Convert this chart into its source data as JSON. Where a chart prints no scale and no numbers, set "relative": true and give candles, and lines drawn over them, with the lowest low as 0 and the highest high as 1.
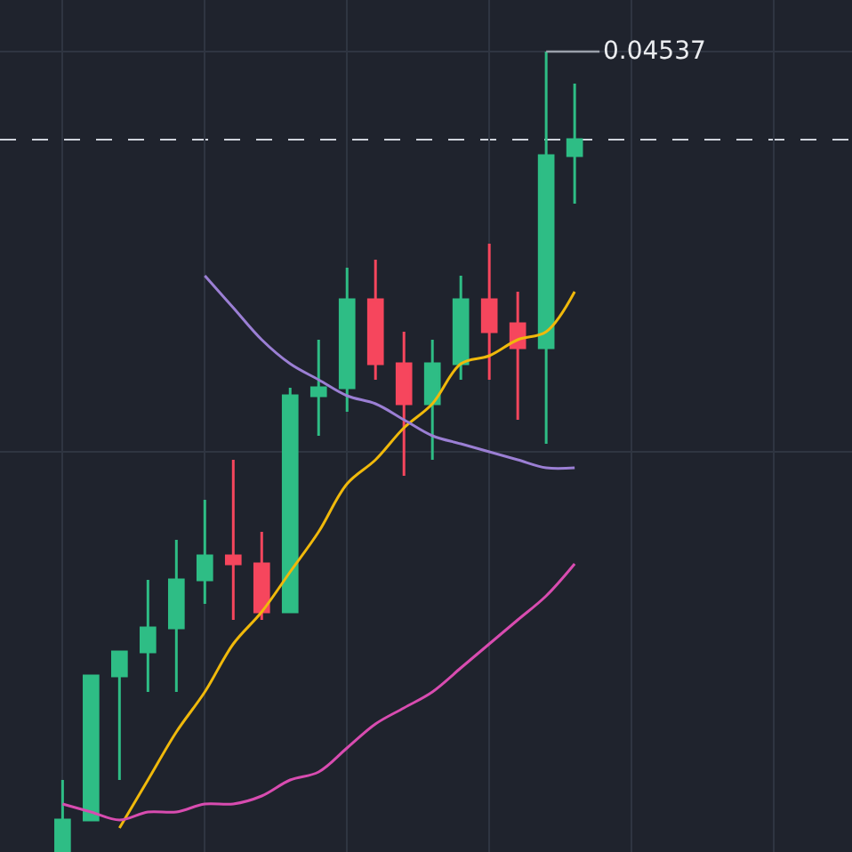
{
  "chart_data": {
    "type": "candlestick",
    "relative": true,
    "grid": true,
    "categories": [
      null,
      null,
      null,
      null,
      null,
      null,
      null,
      null,
      null,
      null,
      null,
      null,
      null,
      null,
      null,
      null,
      null,
      null,
      null
    ],
    "ohlc": [
      [
        0,
        0.09,
        0,
        0.04
      ],
      [
        0.04,
        0.22,
        0.04,
        0.22
      ],
      [
        0.22,
        0.25,
        0.09,
        0.25
      ],
      [
        0.25,
        0.34,
        0.2,
        0.28
      ],
      [
        0.28,
        0.39,
        0.2,
        0.34
      ],
      [
        0.34,
        0.44,
        0.31,
        0.37
      ],
      [
        0.37,
        0.49,
        0.29,
        0.36
      ],
      [
        0.36,
        0.4,
        0.29,
        0.3
      ],
      [
        0.3,
        0.58,
        0.3,
        0.57
      ],
      [
        0.57,
        0.64,
        0.52,
        0.58
      ],
      [
        0.58,
        0.73,
        0.55,
        0.69
      ],
      [
        0.69,
        0.74,
        0.59,
        0.61
      ],
      [
        0.61,
        0.65,
        0.47,
        0.56
      ],
      [
        0.56,
        0.64,
        0.49,
        0.61
      ],
      [
        0.61,
        0.72,
        0.59,
        0.69
      ],
      [
        0.69,
        0.76,
        0.59,
        0.65
      ],
      [
        0.66,
        0.7,
        0.54,
        0.63
      ],
      [
        0.63,
        1,
        0.51,
        0.87
      ],
      [
        0.87,
        0.96,
        0.81,
        0.89
      ]
    ],
    "colors": [
      "#2ebd85",
      "#2ebd85",
      "#2ebd85",
      "#2ebd85",
      "#2ebd85",
      "#2ebd85",
      "#f6465d",
      "#f6465d",
      "#2ebd85",
      "#2ebd85",
      "#2ebd85",
      "#f6465d",
      "#f6465d",
      "#2ebd85",
      "#2ebd85",
      "#f6465d",
      "#f6465d",
      "#2ebd85",
      "#2ebd85"
    ],
    "series": [
      {
        "type": "line",
        "color": "#f0b90b",
        "values": [
          null,
          null,
          0.03,
          0.09,
          0.15,
          0.2,
          0.26,
          0.3,
          0.35,
          0.4,
          0.46,
          0.49,
          0.53,
          0.56,
          0.61,
          0.62,
          0.64,
          0.65,
          0.7
        ]
      },
      {
        "type": "line",
        "color": "#9b7fd4",
        "values": [
          null,
          null,
          null,
          null,
          null,
          0.72,
          0.68,
          0.64,
          0.61,
          0.59,
          0.57,
          0.56,
          0.54,
          0.52,
          0.51,
          0.5,
          0.49,
          0.48,
          0.48
        ]
      },
      {
        "type": "line",
        "color": "#d84cb0",
        "values": [
          0.06,
          0.05,
          0.04,
          0.05,
          0.05,
          0.06,
          0.06,
          0.07,
          0.09,
          0.1,
          0.13,
          0.16,
          0.18,
          0.2,
          0.23,
          0.26,
          0.29,
          0.32,
          0.36
        ]
      }
    ],
    "ref_lines": [
      {
        "axis": "y",
        "value": 0.89,
        "color": "#cfd3dc",
        "line_style": "dashed"
      }
    ],
    "annotations": [
      "0.04537"
    ]
  }
}
